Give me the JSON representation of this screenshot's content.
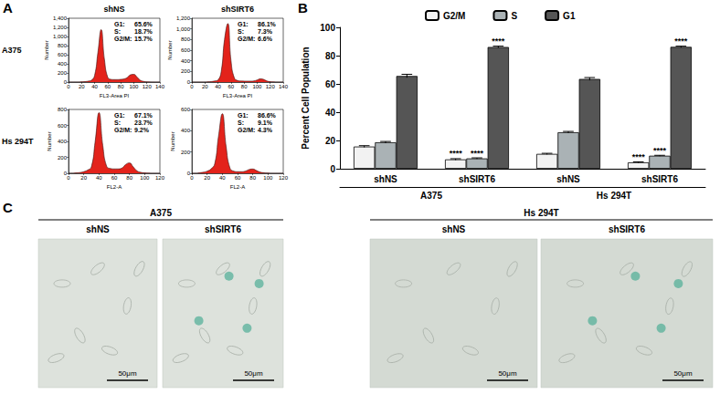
{
  "panel_labels": [
    "A",
    "B",
    "C"
  ],
  "panel_a": {
    "column_labels": [
      "shNS",
      "shSIRT6"
    ],
    "row_labels": [
      "A375",
      "Hs 294T"
    ]
  },
  "chart_data": [
    {
      "type": "area",
      "x_label": "FL3-Area PI",
      "y_label": "Number",
      "color": "#e3231b",
      "x": [
        0,
        5,
        10,
        15,
        20,
        25,
        30,
        35,
        40,
        45,
        50,
        55,
        60,
        65,
        70,
        75,
        80,
        85,
        90,
        95,
        100,
        105,
        110,
        115,
        120,
        125,
        130,
        135,
        140
      ],
      "values": [
        0,
        0,
        0,
        0,
        5,
        10,
        20,
        40,
        150,
        650,
        1150,
        500,
        110,
        60,
        55,
        55,
        60,
        70,
        100,
        160,
        170,
        110,
        40,
        15,
        5,
        2,
        0,
        0,
        0
      ],
      "xlim": [
        0,
        140
      ],
      "xticks": [
        0,
        20,
        40,
        60,
        80,
        100,
        120,
        140
      ],
      "ylim": [
        0,
        1400
      ],
      "yticks": [
        0,
        200,
        400,
        600,
        800,
        1000,
        1200,
        1400
      ],
      "stats": [
        {
          "label": "G1:",
          "text": "65.6%"
        },
        {
          "label": "S:",
          "text": "18.7%"
        },
        {
          "label": "G2/M:",
          "text": "15.7%"
        }
      ]
    },
    {
      "type": "area",
      "x_label": "FL3-Area PI",
      "y_label": "Number",
      "color": "#e3231b",
      "x": [
        0,
        5,
        10,
        15,
        20,
        25,
        30,
        35,
        40,
        45,
        50,
        55,
        60,
        65,
        70,
        75,
        80,
        85,
        90,
        95,
        100,
        105,
        110,
        115,
        120,
        125,
        130,
        135,
        140
      ],
      "values": [
        0,
        0,
        0,
        0,
        0,
        5,
        10,
        20,
        40,
        200,
        800,
        1100,
        400,
        80,
        30,
        20,
        18,
        18,
        18,
        22,
        40,
        60,
        50,
        20,
        8,
        3,
        0,
        0,
        0
      ],
      "xlim": [
        0,
        140
      ],
      "xticks": [
        0,
        20,
        40,
        60,
        80,
        100,
        120,
        140
      ],
      "ylim": [
        0,
        1200
      ],
      "yticks": [
        0,
        200,
        400,
        600,
        800,
        1000,
        1200
      ],
      "stats": [
        {
          "label": "G1:",
          "text": "86.1%"
        },
        {
          "label": "S:",
          "text": "7.3%"
        },
        {
          "label": "G2/M:",
          "text": "6.6%"
        }
      ]
    },
    {
      "type": "area",
      "x_label": "FL2-A",
      "y_label": "Number",
      "color": "#e3231b",
      "x": [
        0,
        5,
        10,
        15,
        20,
        25,
        30,
        35,
        40,
        45,
        50,
        55,
        60,
        65,
        70,
        75,
        80,
        85,
        90,
        95,
        100,
        105,
        110,
        115,
        120
      ],
      "values": [
        0,
        0,
        5,
        10,
        20,
        40,
        80,
        400,
        760,
        350,
        90,
        60,
        55,
        55,
        65,
        110,
        130,
        80,
        30,
        12,
        5,
        2,
        0,
        0,
        0
      ],
      "xlim": [
        0,
        120
      ],
      "xticks": [
        0,
        20,
        40,
        60,
        80,
        100,
        120
      ],
      "ylim": [
        0,
        800
      ],
      "yticks": [
        0,
        200,
        400,
        600,
        800
      ],
      "stats": [
        {
          "label": "G1:",
          "text": "67.1%"
        },
        {
          "label": "S:",
          "text": "23.7%"
        },
        {
          "label": "G2/M:",
          "text": "9.2%"
        }
      ]
    },
    {
      "type": "area",
      "x_label": "FL2-A",
      "y_label": "Number",
      "color": "#e3231b",
      "x": [
        0,
        5,
        10,
        15,
        20,
        25,
        30,
        35,
        40,
        45,
        50,
        55,
        60,
        65,
        70,
        75,
        80,
        85,
        90,
        95,
        100,
        105,
        110,
        115,
        120
      ],
      "values": [
        0,
        0,
        5,
        10,
        20,
        40,
        90,
        350,
        560,
        250,
        50,
        20,
        15,
        15,
        20,
        35,
        40,
        25,
        10,
        5,
        2,
        0,
        0,
        0,
        0
      ],
      "xlim": [
        0,
        120
      ],
      "xticks": [
        0,
        20,
        40,
        60,
        80,
        100,
        120
      ],
      "ylim": [
        0,
        600
      ],
      "yticks": [
        0,
        200,
        400,
        600
      ],
      "stats": [
        {
          "label": "G1:",
          "text": "86.6%"
        },
        {
          "label": "S:",
          "text": "9.1%"
        },
        {
          "label": "G2/M:",
          "text": "4.3%"
        }
      ]
    },
    {
      "type": "bar",
      "y_label": "Percent Cell Population",
      "categories": [
        "shNS",
        "shSIRT6",
        "shNS",
        "shSIRT6"
      ],
      "group_labels": [
        "A375",
        "Hs 294T"
      ],
      "series": [
        {
          "name": "G2/M",
          "color": "#f2f2f2",
          "values": [
            15.7,
            6.6,
            10.5,
            4.5
          ],
          "errors": [
            0.6,
            0.5,
            0.4,
            0.4
          ],
          "significance": [
            null,
            "****",
            null,
            "****"
          ]
        },
        {
          "name": "S",
          "color": "#aab2b5",
          "values": [
            18.7,
            7.3,
            25.8,
            9.2
          ],
          "errors": [
            0.6,
            0.4,
            0.6,
            0.3
          ],
          "significance": [
            null,
            "****",
            null,
            "****"
          ]
        },
        {
          "name": "G1",
          "color": "#555555",
          "values": [
            65.6,
            86.1,
            63.5,
            86.2
          ],
          "errors": [
            1.2,
            0.6,
            1.0,
            0.5
          ],
          "significance": [
            null,
            "****",
            null,
            "****"
          ]
        }
      ],
      "ylim": [
        0,
        100
      ],
      "yticks": [
        0,
        20,
        40,
        60,
        80,
        100
      ],
      "legend": "top",
      "grid": false
    }
  ],
  "panel_c": {
    "groups": [
      {
        "label": "A375",
        "images": [
          {
            "label": "shNS",
            "scale_bar": "50μm"
          },
          {
            "label": "shSIRT6",
            "scale_bar": "50μm"
          }
        ]
      },
      {
        "label": "Hs 294T",
        "images": [
          {
            "label": "shNS",
            "scale_bar": "50μm"
          },
          {
            "label": "shSIRT6",
            "scale_bar": "50μm"
          }
        ]
      }
    ]
  }
}
